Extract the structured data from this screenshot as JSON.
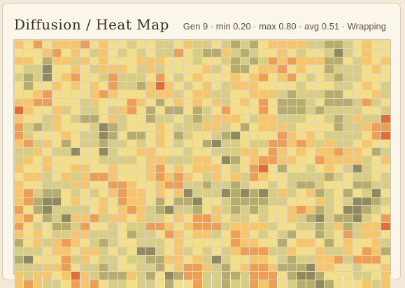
{
  "header": {
    "title": "Diffusion / Heat Map",
    "stats": "Gen 9 · min 0.20 · max 0.80 · avg 0.51 · Wrapping"
  },
  "heatmap": {
    "cols": 40,
    "rows": 30,
    "min": 0.2,
    "max": 0.8,
    "avg": 0.51,
    "palette": [
      "#8f8a5e",
      "#b6ad6c",
      "#d8cd84",
      "#f3df8a",
      "#f6c66d",
      "#ee9f56",
      "#df6f3a"
    ]
  }
}
